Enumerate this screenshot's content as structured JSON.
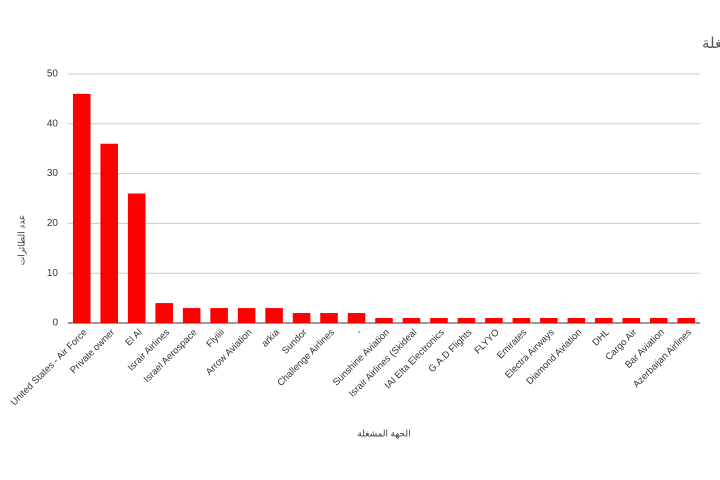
{
  "chart_data": {
    "type": "bar",
    "title": "توزيع الطائرات الظاهرة على أرض مطار بن غوريون بحسب الجهة المشغلة",
    "x_label": "الجهة المشغلة",
    "y_label": "عدد الطائرات",
    "categories": [
      "United States - Air Force",
      "Private owner",
      "El Al",
      "Israir Airlines",
      "Israel Aerospace",
      "Flyiiii",
      "Arrow Aviation",
      "arkia",
      "Sundor",
      "Challenge Airlines",
      "-",
      "Sunshine Aviation",
      "Israir Airlines (Skideal",
      "IAI Elta Electronics",
      "G.A.D Flights",
      "FLYYO",
      "Emirates",
      "Electra Airways",
      "Diamond Aviation",
      "DHL",
      "Cargo Air",
      "Bar Aviation",
      "Azerbaijan Airlines"
    ],
    "values": [
      46,
      36,
      26,
      4,
      3,
      3,
      3,
      3,
      2,
      2,
      2,
      1,
      1,
      1,
      1,
      1,
      1,
      1,
      1,
      1,
      1,
      1,
      1
    ],
    "color": "#ff0000",
    "ylim": [
      0,
      50
    ],
    "yticks": [
      0,
      10,
      20,
      30,
      40,
      50
    ],
    "grid": true
  }
}
